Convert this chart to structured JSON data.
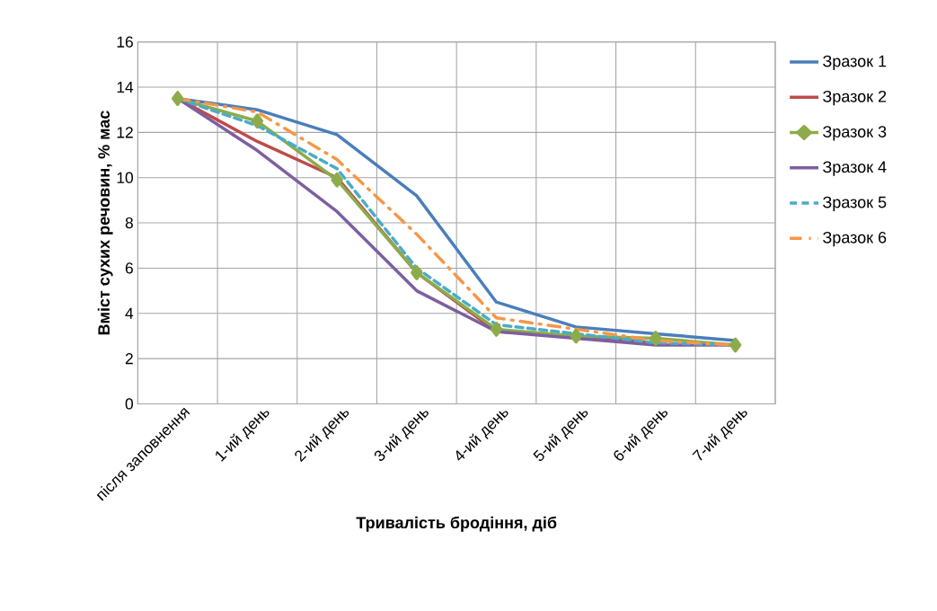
{
  "chart_data": {
    "type": "line",
    "xlabel": "Тривалість бродіння, діб",
    "ylabel": "Вміст сухих речовин, % мас",
    "categories": [
      "після заповнення",
      "1-ий день",
      "2-ий день",
      "3-ий день",
      "4-ий день",
      "5-ий день",
      "6-ий день",
      "7-ий день"
    ],
    "series": [
      {
        "name": "Зразок 1",
        "color": "#4a7ebb",
        "values": [
          13.5,
          13.0,
          11.9,
          9.2,
          4.5,
          3.4,
          3.1,
          2.8
        ]
      },
      {
        "name": "Зразок 2",
        "color": "#be4b48",
        "values": [
          13.5,
          11.6,
          10.0,
          5.8,
          3.2,
          3.0,
          2.7,
          null
        ]
      },
      {
        "name": "Зразок 3",
        "color": "#8cac4a",
        "marker": "diamond",
        "values": [
          13.5,
          12.5,
          9.9,
          5.8,
          3.3,
          3.0,
          2.9,
          2.6
        ]
      },
      {
        "name": "Зразок 4",
        "color": "#7d5fa0",
        "values": [
          13.5,
          11.2,
          8.5,
          5.0,
          3.2,
          2.9,
          2.6,
          2.6
        ]
      },
      {
        "name": "Зразок 5",
        "color": "#4aacc6",
        "line_style": "dashed",
        "values": [
          13.5,
          12.3,
          10.4,
          6.0,
          3.5,
          3.1,
          2.7,
          2.6
        ]
      },
      {
        "name": "Зразок 6",
        "color": "#f79646",
        "line_style": "dashdot",
        "values": [
          13.5,
          12.9,
          10.8,
          7.5,
          3.8,
          3.3,
          2.8,
          2.6
        ]
      }
    ],
    "ylim": [
      0,
      16
    ],
    "yticks": [
      0,
      2,
      4,
      6,
      8,
      10,
      12,
      14,
      16
    ],
    "grid": true,
    "legend": "right"
  }
}
